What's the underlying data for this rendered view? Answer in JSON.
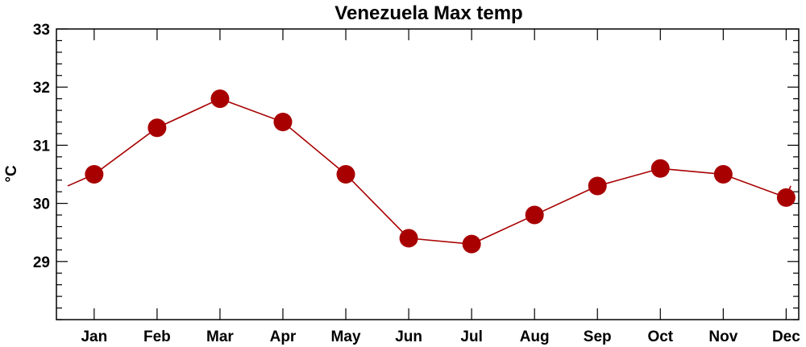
{
  "chart_data": {
    "type": "line",
    "title": "Venezuela Max temp",
    "xlabel": "",
    "ylabel": "°C",
    "categories": [
      "Jan",
      "Feb",
      "Mar",
      "Apr",
      "May",
      "Jun",
      "Jul",
      "Aug",
      "Sep",
      "Oct",
      "Nov",
      "Dec"
    ],
    "series": [
      {
        "values": [
          30.5,
          31.3,
          31.8,
          31.4,
          30.5,
          29.4,
          29.3,
          29.8,
          30.3,
          30.6,
          30.5,
          30.1
        ]
      }
    ],
    "ylim": [
      28.0,
      33.0
    ],
    "yticks": [
      29,
      30,
      31,
      32,
      33
    ],
    "y_minor_step": 0.2,
    "line_color": "#a80000",
    "marker_color": "#a80000",
    "grid": false,
    "legend": "none"
  }
}
